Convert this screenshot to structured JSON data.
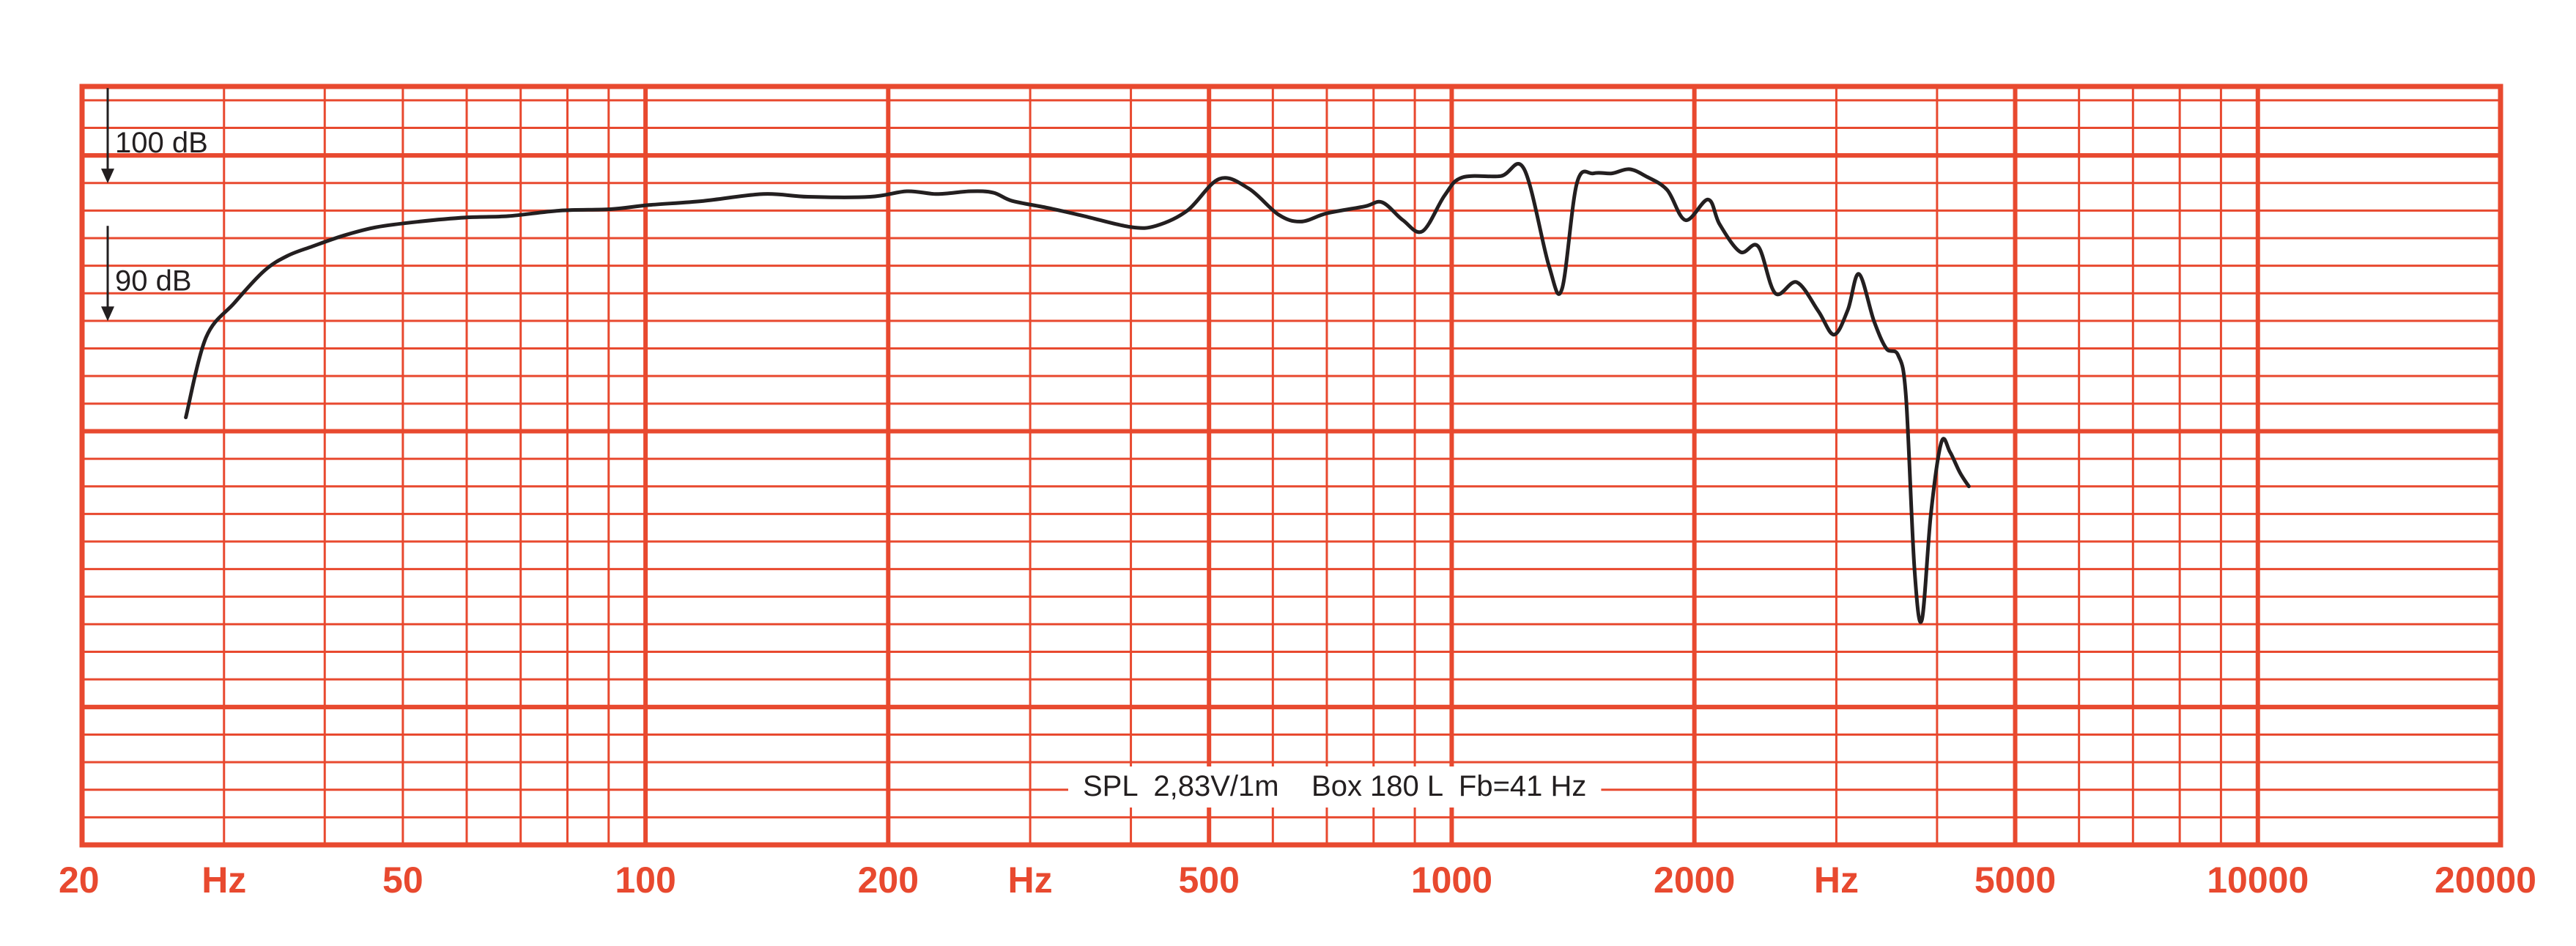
{
  "chart_data": {
    "type": "line",
    "title": "",
    "xlabel": "Hz",
    "ylabel": "dB",
    "x_scale": "log",
    "xlim": [
      20,
      20000
    ],
    "ylim": [
      50,
      105
    ],
    "grid": true,
    "colors": {
      "grid": "#e8492f",
      "curve": "#231f20",
      "ticks": "#e8492f"
    },
    "x_tick_labels": [
      {
        "value": 20,
        "label": "20"
      },
      {
        "value": 30,
        "label": "Hz"
      },
      {
        "value": 50,
        "label": "50"
      },
      {
        "value": 100,
        "label": "100"
      },
      {
        "value": 200,
        "label": "200"
      },
      {
        "value": 300,
        "label": "Hz"
      },
      {
        "value": 500,
        "label": "500"
      },
      {
        "value": 1000,
        "label": "1000"
      },
      {
        "value": 2000,
        "label": "2000"
      },
      {
        "value": 3000,
        "label": "Hz"
      },
      {
        "value": 5000,
        "label": "5000"
      },
      {
        "value": 10000,
        "label": "10000"
      },
      {
        "value": 20000,
        "label": "20000"
      }
    ],
    "y_labels": [
      {
        "value": 100,
        "label": "100 dB"
      },
      {
        "value": 90,
        "label": "90 dB"
      }
    ],
    "annotation": "SPL  2,83V/1m    Box 180 L  Fb=41 Hz",
    "series": [
      {
        "points": [
          [
            26.9,
            81.0
          ],
          [
            28.5,
            86.8
          ],
          [
            30.9,
            89.3
          ],
          [
            33.6,
            91.6
          ],
          [
            35.9,
            92.7
          ],
          [
            38.6,
            93.4
          ],
          [
            42.3,
            94.2
          ],
          [
            46.4,
            94.8
          ],
          [
            52.4,
            95.2
          ],
          [
            59.9,
            95.5
          ],
          [
            67.6,
            95.6
          ],
          [
            78.3,
            96.0
          ],
          [
            90.5,
            96.1
          ],
          [
            101.0,
            96.4
          ],
          [
            118.0,
            96.7
          ],
          [
            140.0,
            97.2
          ],
          [
            159.0,
            97.0
          ],
          [
            190.0,
            97.0
          ],
          [
            211.0,
            97.4
          ],
          [
            230.0,
            97.2
          ],
          [
            253.0,
            97.4
          ],
          [
            270.0,
            97.3
          ],
          [
            285.0,
            96.7
          ],
          [
            315.0,
            96.2
          ],
          [
            350.0,
            95.6
          ],
          [
            400.0,
            94.8
          ],
          [
            430.0,
            94.9
          ],
          [
            470.0,
            96.0
          ],
          [
            515.0,
            98.3
          ],
          [
            560.0,
            97.6
          ],
          [
            610.0,
            95.7
          ],
          [
            650.0,
            95.2
          ],
          [
            700.0,
            95.8
          ],
          [
            780.0,
            96.3
          ],
          [
            820.0,
            96.6
          ],
          [
            870.0,
            95.3
          ],
          [
            920.0,
            94.5
          ],
          [
            980.0,
            97.1
          ],
          [
            1030.0,
            98.4
          ],
          [
            1150.0,
            98.5
          ],
          [
            1230.0,
            99.0
          ],
          [
            1320.0,
            92.0
          ],
          [
            1370.0,
            90.3
          ],
          [
            1430.0,
            98.0
          ],
          [
            1500.0,
            98.7
          ],
          [
            1580.0,
            98.7
          ],
          [
            1660.0,
            99.0
          ],
          [
            1740.0,
            98.5
          ],
          [
            1850.0,
            97.5
          ],
          [
            1950.0,
            95.3
          ],
          [
            2080.0,
            96.8
          ],
          [
            2150.0,
            95.0
          ],
          [
            2280.0,
            93.0
          ],
          [
            2400.0,
            93.4
          ],
          [
            2520.0,
            90.0
          ],
          [
            2680.0,
            90.8
          ],
          [
            2850.0,
            88.7
          ],
          [
            2980.0,
            87.0
          ],
          [
            3100.0,
            88.8
          ],
          [
            3200.0,
            91.4
          ],
          [
            3340.0,
            88.0
          ],
          [
            3460.0,
            86.0
          ],
          [
            3580.0,
            85.5
          ],
          [
            3660.0,
            82.5
          ],
          [
            3750.0,
            70.0
          ],
          [
            3830.0,
            66.3
          ],
          [
            3930.0,
            74.0
          ],
          [
            4050.0,
            79.2
          ],
          [
            4150.0,
            78.5
          ],
          [
            4270.0,
            77.0
          ],
          [
            4380.0,
            76.0
          ]
        ]
      }
    ]
  }
}
